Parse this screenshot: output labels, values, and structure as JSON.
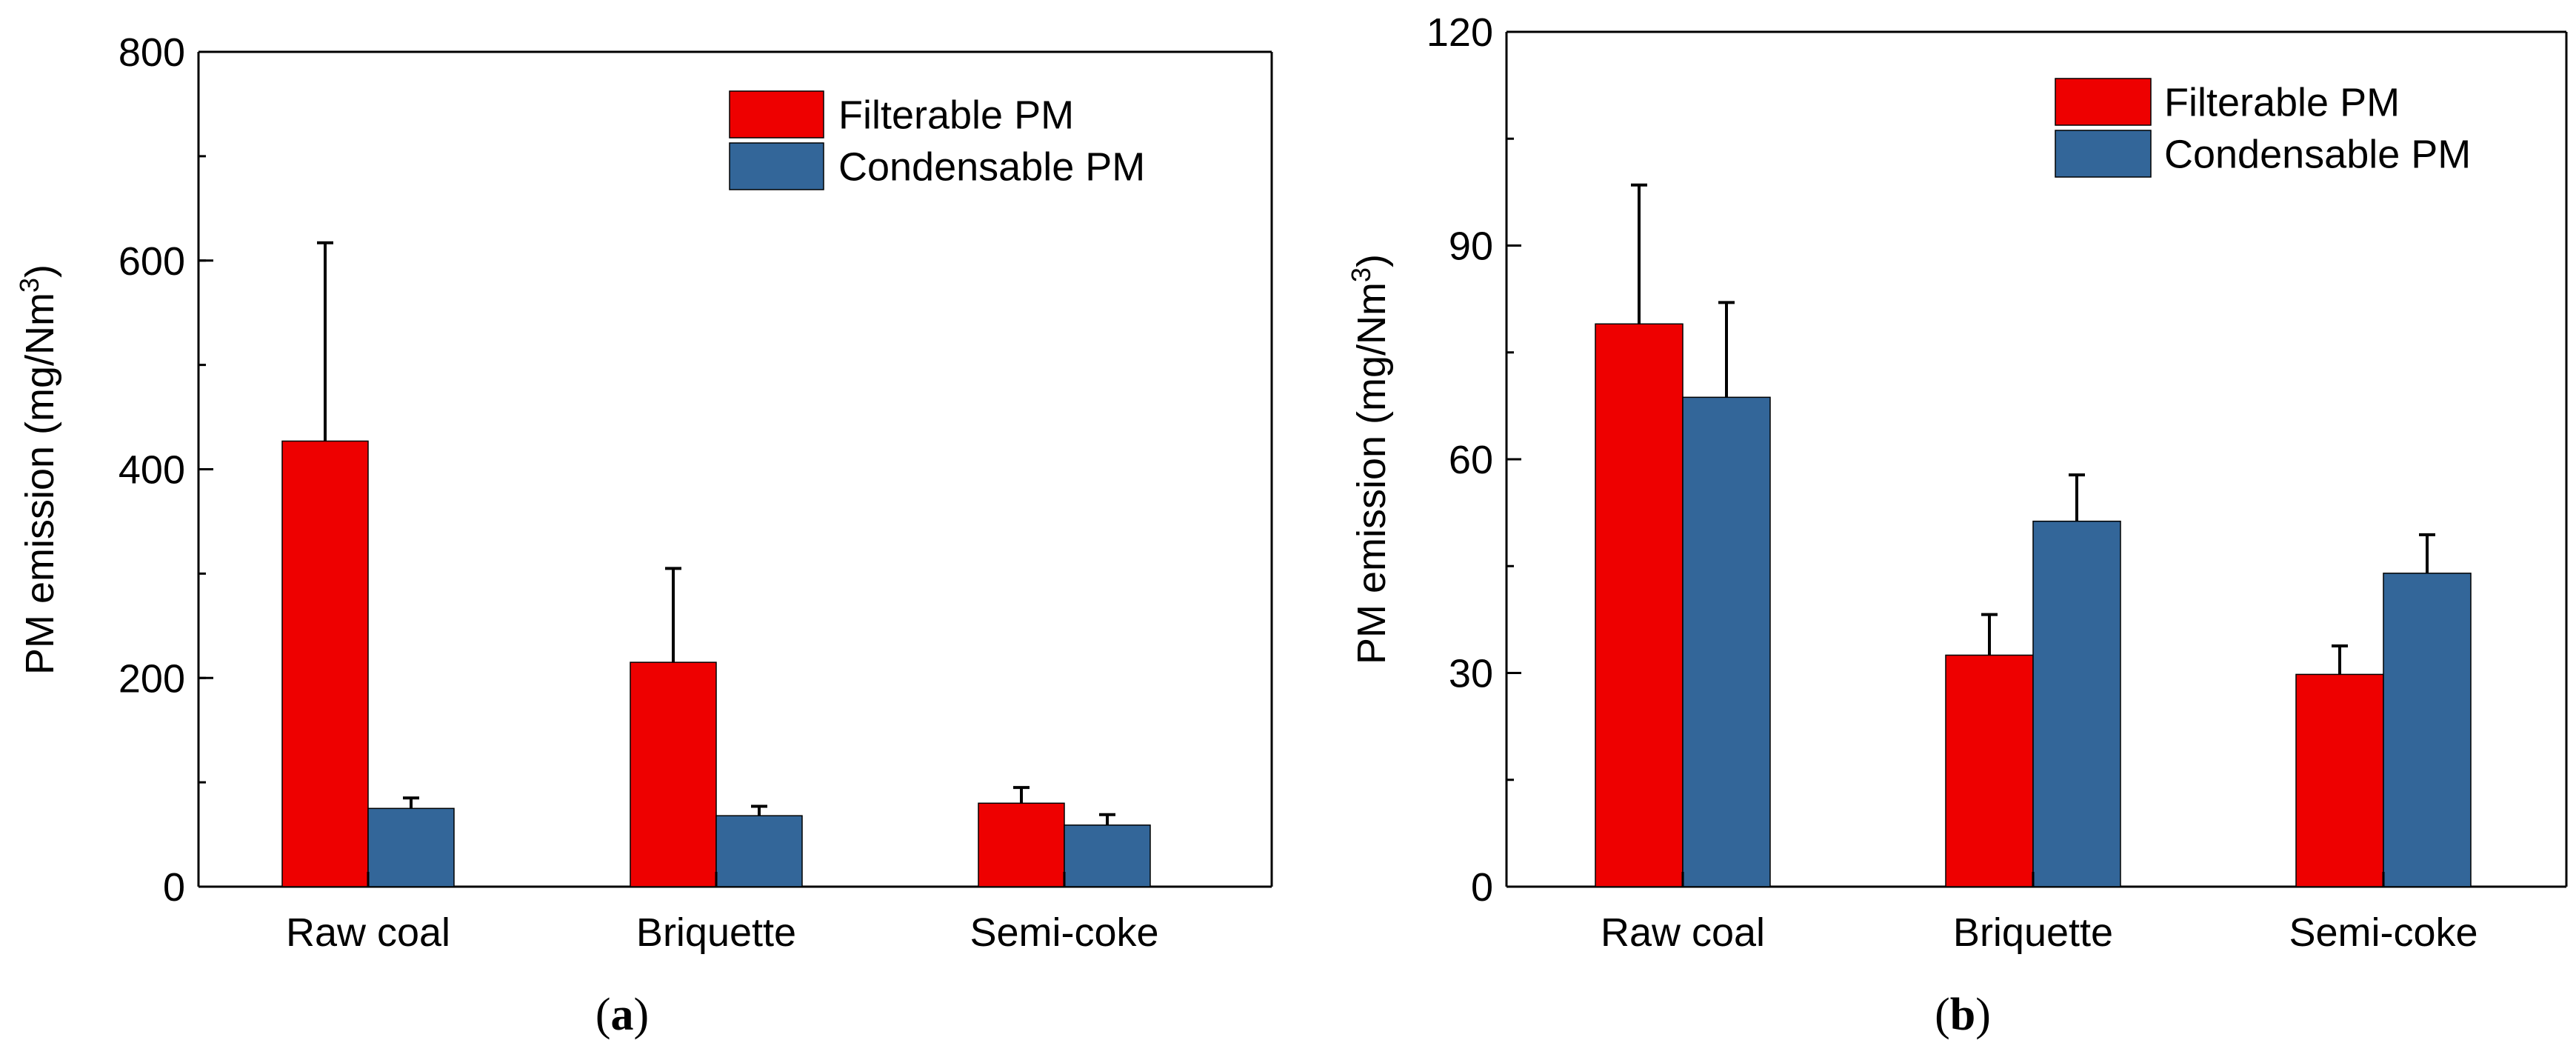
{
  "chart_data": [
    {
      "type": "bar",
      "panel_label": "a",
      "categories": [
        "Raw coal",
        "Briquette",
        "Semi-coke"
      ],
      "series": [
        {
          "name": "Filterable PM",
          "color": "#ee0000",
          "values": [
            427,
            215,
            80
          ],
          "errors": [
            190,
            90,
            15
          ]
        },
        {
          "name": "Condensable PM",
          "color": "#336699",
          "values": [
            75,
            68,
            59
          ],
          "errors": [
            10,
            9,
            10
          ]
        }
      ],
      "ylabel": "PM emission (mg/Nm3)",
      "ylabel_main": "PM emission (mg/Nm",
      "ylabel_sup": "3",
      "ylabel_end": ")",
      "ylim": [
        0,
        800
      ],
      "yticks": [
        0,
        200,
        400,
        600,
        800
      ],
      "y_minor_step": 100,
      "legend": "top-right"
    },
    {
      "type": "bar",
      "panel_label": "b",
      "categories": [
        "Raw coal",
        "Briquette",
        "Semi-coke"
      ],
      "series": [
        {
          "name": "Filterable PM",
          "color": "#ee0000",
          "values": [
            79,
            32.5,
            29.8
          ],
          "errors": [
            19.5,
            5.7,
            4
          ]
        },
        {
          "name": "Condensable PM",
          "color": "#336699",
          "values": [
            68.7,
            51.3,
            44
          ],
          "errors": [
            13.3,
            6.5,
            5.4
          ]
        }
      ],
      "ylabel": "PM emission (mg/Nm3)",
      "ylabel_main": "PM emission (mg/Nm",
      "ylabel_sup": "3",
      "ylabel_end": ")",
      "ylim": [
        0,
        120
      ],
      "yticks": [
        0,
        30,
        60,
        90,
        120
      ],
      "y_minor_step": 15,
      "legend": "top-right"
    }
  ]
}
